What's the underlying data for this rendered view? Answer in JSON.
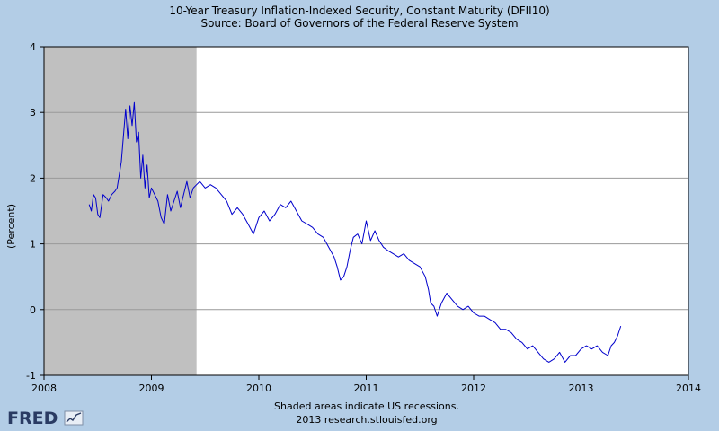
{
  "colors": {
    "background": "#b3cde6",
    "plot_background": "#ffffff",
    "recession_shade": "#c0c0c0",
    "series_line": "#0000cc",
    "grid": "#999999"
  },
  "footer": {
    "note": "Shaded areas indicate US recessions.",
    "credit": "2013 research.stlouisfed.org"
  },
  "logo": {
    "text": "FRED",
    "icon": "chart-sparkline-icon"
  },
  "chart_data": {
    "type": "line",
    "title": "10-Year Treasury Inflation-Indexed Security, Constant Maturity (DFII10)",
    "subtitle": "Source: Board of Governors of the Federal Reserve System",
    "xlabel": "",
    "ylabel": "(Percent)",
    "xlim": [
      2008,
      2014
    ],
    "ylim": [
      -1,
      4
    ],
    "x_ticks": [
      "2008",
      "2009",
      "2010",
      "2011",
      "2012",
      "2013",
      "2014"
    ],
    "y_ticks": [
      "4",
      "3",
      "2",
      "1",
      "0",
      "-1"
    ],
    "grid": true,
    "recessions": [
      [
        2008.0,
        2009.42
      ]
    ],
    "series": [
      {
        "x": [
          2008.42,
          2008.44,
          2008.46,
          2008.48,
          2008.5,
          2008.52,
          2008.55,
          2008.58,
          2008.6,
          2008.63,
          2008.66,
          2008.68,
          2008.7,
          2008.72,
          2008.74,
          2008.76,
          2008.78,
          2008.8,
          2008.82,
          2008.84,
          2008.86,
          2008.88,
          2008.9,
          2008.92,
          2008.94,
          2008.96,
          2008.98,
          2009.0,
          2009.03,
          2009.06,
          2009.09,
          2009.12,
          2009.15,
          2009.18,
          2009.21,
          2009.24,
          2009.27,
          2009.3,
          2009.33,
          2009.36,
          2009.39,
          2009.42,
          2009.45,
          2009.5,
          2009.55,
          2009.6,
          2009.65,
          2009.7,
          2009.75,
          2009.8,
          2009.85,
          2009.9,
          2009.95,
          2010.0,
          2010.05,
          2010.1,
          2010.15,
          2010.2,
          2010.25,
          2010.3,
          2010.35,
          2010.4,
          2010.45,
          2010.5,
          2010.55,
          2010.6,
          2010.65,
          2010.7,
          2010.73,
          2010.76,
          2010.79,
          2010.82,
          2010.85,
          2010.88,
          2010.92,
          2010.96,
          2011.0,
          2011.04,
          2011.08,
          2011.12,
          2011.16,
          2011.2,
          2011.25,
          2011.3,
          2011.35,
          2011.4,
          2011.45,
          2011.5,
          2011.55,
          2011.58,
          2011.6,
          2011.63,
          2011.66,
          2011.7,
          2011.75,
          2011.8,
          2011.85,
          2011.9,
          2011.95,
          2012.0,
          2012.05,
          2012.1,
          2012.15,
          2012.2,
          2012.25,
          2012.3,
          2012.35,
          2012.4,
          2012.45,
          2012.5,
          2012.55,
          2012.6,
          2012.65,
          2012.7,
          2012.75,
          2012.8,
          2012.85,
          2012.9,
          2012.95,
          2013.0,
          2013.05,
          2013.1,
          2013.15,
          2013.2,
          2013.25,
          2013.28,
          2013.31,
          2013.34,
          2013.37
        ],
        "values": [
          1.6,
          1.5,
          1.75,
          1.7,
          1.45,
          1.4,
          1.75,
          1.7,
          1.65,
          1.75,
          1.8,
          1.85,
          2.05,
          2.25,
          2.65,
          3.05,
          2.6,
          3.1,
          2.8,
          3.15,
          2.55,
          2.7,
          2.0,
          2.35,
          1.85,
          2.2,
          1.7,
          1.85,
          1.75,
          1.65,
          1.4,
          1.3,
          1.75,
          1.5,
          1.65,
          1.8,
          1.55,
          1.75,
          1.95,
          1.7,
          1.85,
          1.9,
          1.95,
          1.85,
          1.9,
          1.85,
          1.75,
          1.65,
          1.45,
          1.55,
          1.45,
          1.3,
          1.15,
          1.4,
          1.5,
          1.35,
          1.45,
          1.6,
          1.55,
          1.65,
          1.5,
          1.35,
          1.3,
          1.25,
          1.15,
          1.1,
          0.95,
          0.8,
          0.65,
          0.45,
          0.5,
          0.65,
          0.9,
          1.1,
          1.15,
          1.0,
          1.35,
          1.05,
          1.2,
          1.05,
          0.95,
          0.9,
          0.85,
          0.8,
          0.85,
          0.75,
          0.7,
          0.65,
          0.5,
          0.3,
          0.1,
          0.05,
          -0.1,
          0.1,
          0.25,
          0.15,
          0.05,
          0.0,
          0.05,
          -0.05,
          -0.1,
          -0.1,
          -0.15,
          -0.2,
          -0.3,
          -0.3,
          -0.35,
          -0.45,
          -0.5,
          -0.6,
          -0.55,
          -0.65,
          -0.75,
          -0.8,
          -0.75,
          -0.65,
          -0.8,
          -0.7,
          -0.7,
          -0.6,
          -0.55,
          -0.6,
          -0.55,
          -0.65,
          -0.7,
          -0.55,
          -0.5,
          -0.4,
          -0.25
        ]
      }
    ]
  }
}
